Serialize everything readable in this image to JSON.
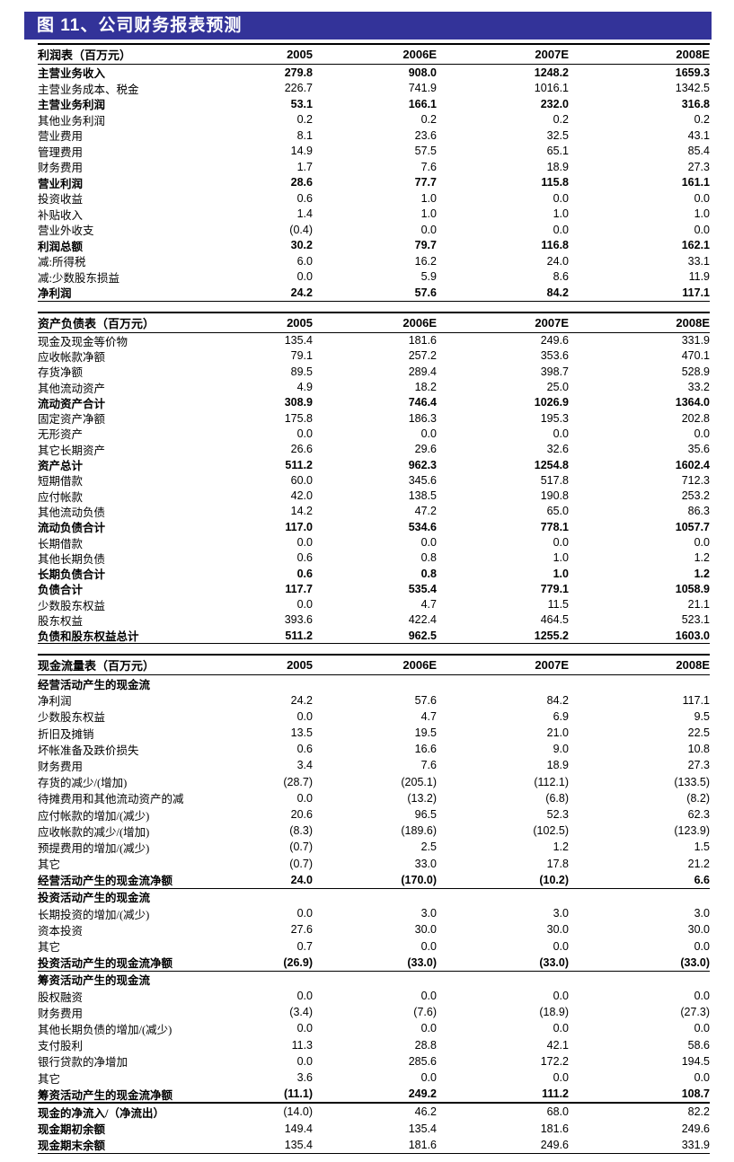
{
  "title": "图 11、公司财务报表预测",
  "colors": {
    "accent": "#333399",
    "text": "#000000",
    "title_text": "#ffffff"
  },
  "columns": [
    "2005",
    "2006E",
    "2007E",
    "2008E"
  ],
  "tables": [
    {
      "name": "利润表（百万元）",
      "rows": [
        {
          "label": "主营业务收入",
          "style": "bold",
          "values": [
            "279.8",
            "908.0",
            "1248.2",
            "1659.3"
          ]
        },
        {
          "label": "主营业务成本、税金",
          "style": "normal",
          "values": [
            "226.7",
            "741.9",
            "1016.1",
            "1342.5"
          ]
        },
        {
          "label": "主营业务利润",
          "style": "bold",
          "values": [
            "53.1",
            "166.1",
            "232.0",
            "316.8"
          ]
        },
        {
          "label": "其他业务利润",
          "style": "normal",
          "values": [
            "0.2",
            "0.2",
            "0.2",
            "0.2"
          ]
        },
        {
          "label": "营业费用",
          "style": "normal",
          "values": [
            "8.1",
            "23.6",
            "32.5",
            "43.1"
          ]
        },
        {
          "label": "管理费用",
          "style": "normal",
          "values": [
            "14.9",
            "57.5",
            "65.1",
            "85.4"
          ]
        },
        {
          "label": "财务费用",
          "style": "normal",
          "values": [
            "1.7",
            "7.6",
            "18.9",
            "27.3"
          ]
        },
        {
          "label": "营业利润",
          "style": "bold",
          "values": [
            "28.6",
            "77.7",
            "115.8",
            "161.1"
          ]
        },
        {
          "label": "投资收益",
          "style": "normal",
          "values": [
            "0.6",
            "1.0",
            "0.0",
            "0.0"
          ]
        },
        {
          "label": "补贴收入",
          "style": "normal",
          "values": [
            "1.4",
            "1.0",
            "1.0",
            "1.0"
          ]
        },
        {
          "label": "营业外收支",
          "style": "normal",
          "values": [
            "(0.4)",
            "0.0",
            "0.0",
            "0.0"
          ]
        },
        {
          "label": "利润总额",
          "style": "bold",
          "values": [
            "30.2",
            "79.7",
            "116.8",
            "162.1"
          ]
        },
        {
          "label": "减:所得税",
          "style": "normal",
          "values": [
            "6.0",
            "16.2",
            "24.0",
            "33.1"
          ]
        },
        {
          "label": "减:少数股东损益",
          "style": "normal",
          "values": [
            "0.0",
            "5.9",
            "8.6",
            "11.9"
          ]
        },
        {
          "label": "净利润",
          "style": "bold",
          "values": [
            "24.2",
            "57.6",
            "84.2",
            "117.1"
          ]
        }
      ]
    },
    {
      "name": "资产负债表（百万元）",
      "rows": [
        {
          "label": "现金及现金等价物",
          "style": "normal",
          "values": [
            "135.4",
            "181.6",
            "249.6",
            "331.9"
          ]
        },
        {
          "label": "应收帐款净额",
          "style": "normal",
          "values": [
            "79.1",
            "257.2",
            "353.6",
            "470.1"
          ]
        },
        {
          "label": "存货净额",
          "style": "normal",
          "values": [
            "89.5",
            "289.4",
            "398.7",
            "528.9"
          ]
        },
        {
          "label": "其他流动资产",
          "style": "normal",
          "values": [
            "4.9",
            "18.2",
            "25.0",
            "33.2"
          ]
        },
        {
          "label": "流动资产合计",
          "style": "bold",
          "values": [
            "308.9",
            "746.4",
            "1026.9",
            "1364.0"
          ]
        },
        {
          "label": "固定资产净额",
          "style": "normal",
          "values": [
            "175.8",
            "186.3",
            "195.3",
            "202.8"
          ]
        },
        {
          "label": "无形资产",
          "style": "normal",
          "values": [
            "0.0",
            "0.0",
            "0.0",
            "0.0"
          ]
        },
        {
          "label": "其它长期资产",
          "style": "normal",
          "values": [
            "26.6",
            "29.6",
            "32.6",
            "35.6"
          ]
        },
        {
          "label": "资产总计",
          "style": "bold",
          "values": [
            "511.2",
            "962.3",
            "1254.8",
            "1602.4"
          ]
        },
        {
          "label": "短期借款",
          "style": "normal",
          "values": [
            "60.0",
            "345.6",
            "517.8",
            "712.3"
          ]
        },
        {
          "label": "应付帐款",
          "style": "normal",
          "values": [
            "42.0",
            "138.5",
            "190.8",
            "253.2"
          ]
        },
        {
          "label": "其他流动负债",
          "style": "normal",
          "values": [
            "14.2",
            "47.2",
            "65.0",
            "86.3"
          ]
        },
        {
          "label": "流动负债合计",
          "style": "bold",
          "values": [
            "117.0",
            "534.6",
            "778.1",
            "1057.7"
          ]
        },
        {
          "label": "长期借款",
          "style": "normal",
          "values": [
            "0.0",
            "0.0",
            "0.0",
            "0.0"
          ]
        },
        {
          "label": "其他长期负债",
          "style": "normal",
          "values": [
            "0.6",
            "0.8",
            "1.0",
            "1.2"
          ]
        },
        {
          "label": "长期负债合计",
          "style": "bold",
          "values": [
            "0.6",
            "0.8",
            "1.0",
            "1.2"
          ]
        },
        {
          "label": "负债合计",
          "style": "bold",
          "values": [
            "117.7",
            "535.4",
            "779.1",
            "1058.9"
          ]
        },
        {
          "label": "少数股东权益",
          "style": "normal",
          "values": [
            "0.0",
            "4.7",
            "11.5",
            "21.1"
          ]
        },
        {
          "label": "股东权益",
          "style": "normal",
          "values": [
            "393.6",
            "422.4",
            "464.5",
            "523.1"
          ]
        },
        {
          "label": "负债和股东权益总计",
          "style": "bold",
          "values": [
            "511.2",
            "962.5",
            "1255.2",
            "1603.0"
          ]
        }
      ]
    },
    {
      "name": "现金流量表（百万元）",
      "rows": [
        {
          "label": "经营活动产生的现金流",
          "style": "section",
          "values": []
        },
        {
          "label": "净利润",
          "style": "normal",
          "values": [
            "24.2",
            "57.6",
            "84.2",
            "117.1"
          ]
        },
        {
          "label": "少数股东权益",
          "style": "normal",
          "values": [
            "0.0",
            "4.7",
            "6.9",
            "9.5"
          ]
        },
        {
          "label": "折旧及摊销",
          "style": "normal",
          "values": [
            "13.5",
            "19.5",
            "21.0",
            "22.5"
          ]
        },
        {
          "label": "坏帐准备及跌价损失",
          "style": "normal",
          "values": [
            "0.6",
            "16.6",
            "9.0",
            "10.8"
          ]
        },
        {
          "label": "财务费用",
          "style": "normal",
          "values": [
            "3.4",
            "7.6",
            "18.9",
            "27.3"
          ]
        },
        {
          "label": "存货的减少/(增加)",
          "style": "normal",
          "values": [
            "(28.7)",
            "(205.1)",
            "(112.1)",
            "(133.5)"
          ]
        },
        {
          "label": "待摊费用和其他流动资产的减",
          "style": "normal",
          "values": [
            "0.0",
            "(13.2)",
            "(6.8)",
            "(8.2)"
          ]
        },
        {
          "label": "应付帐款的增加/(减少)",
          "style": "normal",
          "values": [
            "20.6",
            "96.5",
            "52.3",
            "62.3"
          ]
        },
        {
          "label": "应收帐款的减少/(增加)",
          "style": "normal",
          "values": [
            "(8.3)",
            "(189.6)",
            "(102.5)",
            "(123.9)"
          ]
        },
        {
          "label": "预提费用的增加/(减少)",
          "style": "normal",
          "values": [
            "(0.7)",
            "2.5",
            "1.2",
            "1.5"
          ]
        },
        {
          "label": "其它",
          "style": "normal",
          "values": [
            "(0.7)",
            "33.0",
            "17.8",
            "21.2"
          ]
        },
        {
          "label": "经营活动产生的现金流净额",
          "style": "bold",
          "values": [
            "24.0",
            "(170.0)",
            "(10.2)",
            "6.6"
          ]
        },
        {
          "label": "投资活动产生的现金流",
          "style": "section",
          "sep": "thin",
          "values": []
        },
        {
          "label": "长期投资的增加/(减少)",
          "style": "normal",
          "values": [
            "0.0",
            "3.0",
            "3.0",
            "3.0"
          ]
        },
        {
          "label": "资本投资",
          "style": "normal",
          "values": [
            "27.6",
            "30.0",
            "30.0",
            "30.0"
          ]
        },
        {
          "label": "其它",
          "style": "normal",
          "values": [
            "0.7",
            "0.0",
            "0.0",
            "0.0"
          ]
        },
        {
          "label": "投资活动产生的现金流净额",
          "style": "bold",
          "values": [
            "(26.9)",
            "(33.0)",
            "(33.0)",
            "(33.0)"
          ]
        },
        {
          "label": "筹资活动产生的现金流",
          "style": "section",
          "sep": "thin",
          "values": []
        },
        {
          "label": "股权融资",
          "style": "normal",
          "values": [
            "0.0",
            "0.0",
            "0.0",
            "0.0"
          ]
        },
        {
          "label": "财务费用",
          "style": "normal",
          "values": [
            "(3.4)",
            "(7.6)",
            "(18.9)",
            "(27.3)"
          ]
        },
        {
          "label": "其他长期负债的增加/(减少)",
          "style": "normal",
          "values": [
            "0.0",
            "0.0",
            "0.0",
            "0.0"
          ]
        },
        {
          "label": "支付股利",
          "style": "normal",
          "values": [
            "11.3",
            "28.8",
            "42.1",
            "58.6"
          ]
        },
        {
          "label": "银行贷款的净增加",
          "style": "normal",
          "values": [
            "0.0",
            "285.6",
            "172.2",
            "194.5"
          ]
        },
        {
          "label": "其它",
          "style": "normal",
          "values": [
            "3.6",
            "0.0",
            "0.0",
            "0.0"
          ]
        },
        {
          "label": "筹资活动产生的现金流净额",
          "style": "bold",
          "values": [
            "(11.1)",
            "249.2",
            "111.2",
            "108.7"
          ]
        },
        {
          "label": "现金的净流入/（净流出）",
          "style": "boldlabel",
          "sep": "thick",
          "values": [
            "(14.0)",
            "46.2",
            "68.0",
            "82.2"
          ]
        },
        {
          "label": "现金期初余额",
          "style": "boldlabel",
          "values": [
            "149.4",
            "135.4",
            "181.6",
            "249.6"
          ]
        },
        {
          "label": "现金期末余额",
          "style": "boldlabel",
          "values": [
            "135.4",
            "181.6",
            "249.6",
            "331.9"
          ]
        }
      ]
    }
  ]
}
